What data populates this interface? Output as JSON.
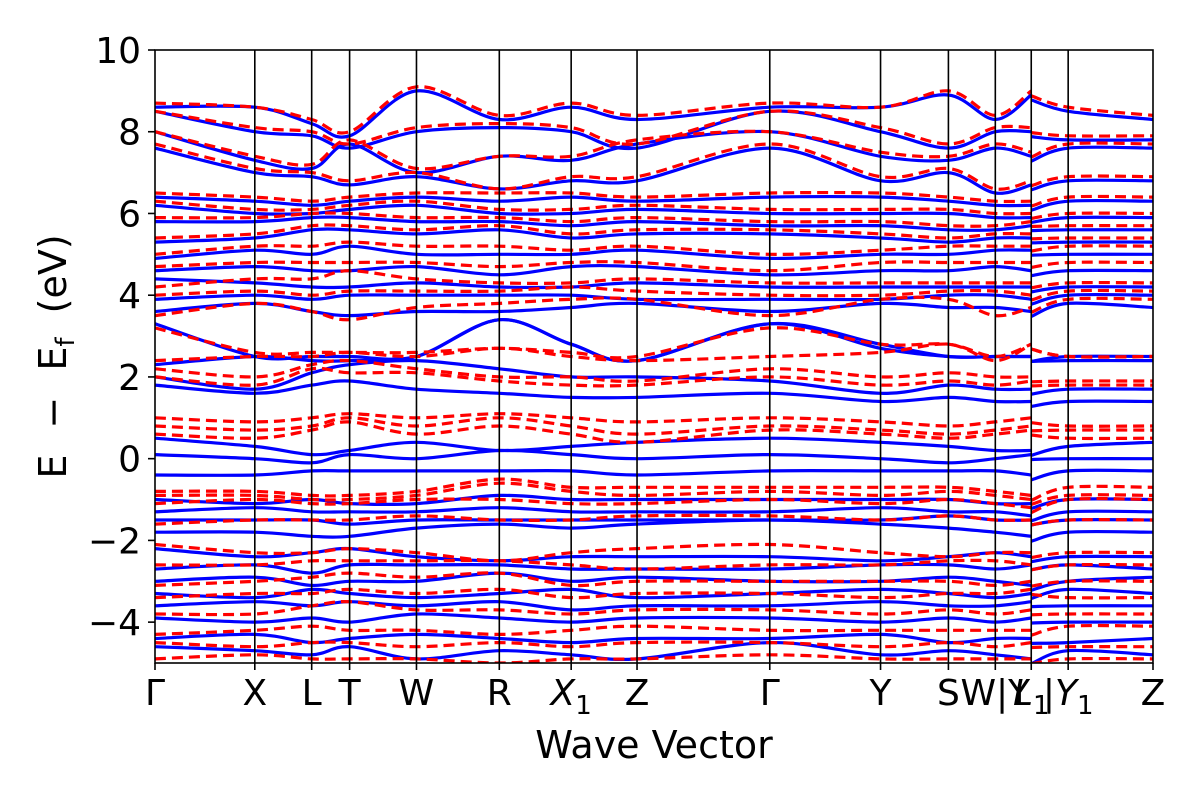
{
  "chart_data": {
    "type": "line",
    "title": "",
    "xlabel": "Wave Vector",
    "ylabel_parts": {
      "E": "E",
      "minus": "−",
      "Ef_main": "E",
      "Ef_sub": "f",
      "unit": "(eV)"
    },
    "ylim": [
      -5,
      10
    ],
    "yticks": [
      {
        "value": -4,
        "label": "−4"
      },
      {
        "value": -2,
        "label": "−2"
      },
      {
        "value": 0,
        "label": "0"
      },
      {
        "value": 2,
        "label": "2"
      },
      {
        "value": 4,
        "label": "4"
      },
      {
        "value": 6,
        "label": "6"
      },
      {
        "value": 8,
        "label": "8"
      },
      {
        "value": 10,
        "label": "10"
      }
    ],
    "kpath_label_note": "high-symmetry k-point labels as printed, left to right",
    "kpoints": [
      {
        "label": "Γ",
        "x": 0.0
      },
      {
        "label": "X",
        "x": 0.1
      },
      {
        "label": "L",
        "x": 0.157
      },
      {
        "label": "T",
        "x": 0.195
      },
      {
        "label": "W",
        "x": 0.262
      },
      {
        "label": "R",
        "x": 0.345
      },
      {
        "label": "X",
        "sub": "1",
        "x": 0.417
      },
      {
        "label": "Z",
        "x": 0.483
      },
      {
        "label": "Γ",
        "x": 0.616
      },
      {
        "label": "Y",
        "x": 0.727
      },
      {
        "label": "S",
        "x": 0.795
      },
      {
        "label": "W|Y",
        "x": 0.842
      },
      {
        "label": "L",
        "sub": "1",
        "x": 0.878
      },
      {
        "label": "|Y",
        "sub": "1",
        "x": 0.915
      },
      {
        "label": "Z",
        "x": 1.0
      }
    ],
    "discontinuity_x": 0.878,
    "legend": "none",
    "grid": false,
    "series_styles": [
      {
        "style": "solid",
        "color": "#0000ff"
      },
      {
        "style": "dashed",
        "color": "#ff0000"
      }
    ],
    "bands_solid_blue": [
      [
        -4.6,
        -4.7,
        -4.8,
        -4.6,
        -4.9,
        -4.7,
        -4.8,
        -4.9,
        -4.5,
        -4.8,
        -4.7,
        -4.8,
        -4.9,
        -4.7,
        -4.8
      ],
      [
        -4.4,
        -4.3,
        -4.5,
        -4.4,
        -4.3,
        -4.4,
        -4.5,
        -4.4,
        -4.4,
        -4.3,
        -4.5,
        -4.4,
        -4.4,
        -4.5,
        -4.4
      ],
      [
        -3.9,
        -4.0,
        -3.9,
        -4.0,
        -3.8,
        -3.9,
        -4.0,
        -3.9,
        -3.9,
        -4.0,
        -3.9,
        -4.0,
        -3.9,
        -4.0,
        -4.0
      ],
      [
        -3.6,
        -3.5,
        -3.6,
        -3.5,
        -3.6,
        -3.5,
        -3.7,
        -3.6,
        -3.6,
        -3.5,
        -3.6,
        -3.6,
        -3.5,
        -3.6,
        -3.6
      ],
      [
        -3.3,
        -3.4,
        -3.2,
        -3.3,
        -3.4,
        -3.3,
        -3.2,
        -3.4,
        -3.3,
        -3.2,
        -3.3,
        -3.4,
        -3.3,
        -3.2,
        -3.3
      ],
      [
        -3.0,
        -2.9,
        -3.1,
        -3.0,
        -3.0,
        -2.8,
        -3.0,
        -2.9,
        -3.0,
        -3.0,
        -2.9,
        -3.0,
        -3.1,
        -3.0,
        -2.9
      ],
      [
        -2.7,
        -2.6,
        -2.8,
        -2.6,
        -2.6,
        -2.6,
        -2.7,
        -2.7,
        -2.7,
        -2.6,
        -2.6,
        -2.7,
        -2.6,
        -2.6,
        -2.7
      ],
      [
        -2.2,
        -2.4,
        -2.3,
        -2.2,
        -2.4,
        -2.5,
        -2.4,
        -2.4,
        -2.4,
        -2.5,
        -2.4,
        -2.3,
        -2.4,
        -2.4,
        -2.4
      ],
      [
        -1.8,
        -1.8,
        -1.9,
        -1.9,
        -1.7,
        -1.6,
        -1.7,
        -1.6,
        -1.5,
        -1.6,
        -1.7,
        -1.8,
        -1.9,
        -1.8,
        -1.8
      ],
      [
        -1.5,
        -1.5,
        -1.5,
        -1.6,
        -1.5,
        -1.5,
        -1.5,
        -1.5,
        -1.5,
        -1.5,
        -1.4,
        -1.5,
        -1.5,
        -1.5,
        -1.5
      ],
      [
        -1.3,
        -1.2,
        -1.3,
        -1.3,
        -1.3,
        -1.2,
        -1.3,
        -1.3,
        -1.3,
        -1.2,
        -1.3,
        -1.3,
        -1.4,
        -1.3,
        -1.3
      ],
      [
        -1.0,
        -1.1,
        -1.0,
        -1.1,
        -1.1,
        -0.9,
        -1.0,
        -1.0,
        -1.0,
        -1.0,
        -1.0,
        -1.1,
        -1.1,
        -1.0,
        -1.0
      ],
      [
        -0.4,
        -0.4,
        -0.3,
        -0.3,
        -0.3,
        -0.3,
        -0.3,
        -0.4,
        -0.3,
        -0.3,
        -0.3,
        -0.3,
        -0.4,
        -0.3,
        -0.3
      ],
      [
        0.1,
        0.0,
        -0.1,
        0.1,
        0.0,
        0.2,
        0.1,
        0.0,
        0.1,
        0.0,
        -0.1,
        0.0,
        0.1,
        0.0,
        0.0
      ],
      [
        0.5,
        0.3,
        0.1,
        0.2,
        0.4,
        0.2,
        0.3,
        0.4,
        0.5,
        0.4,
        0.3,
        0.2,
        0.2,
        0.3,
        0.4
      ],
      [
        1.8,
        1.6,
        1.8,
        1.9,
        1.7,
        1.6,
        1.5,
        1.5,
        1.6,
        1.4,
        1.5,
        1.4,
        1.4,
        1.4,
        1.4
      ],
      [
        2.0,
        1.7,
        2.1,
        2.3,
        2.4,
        2.2,
        2.0,
        2.0,
        1.9,
        1.6,
        1.8,
        1.7,
        1.7,
        1.7,
        1.7
      ],
      [
        2.3,
        2.5,
        2.4,
        2.4,
        2.5,
        3.4,
        2.8,
        2.4,
        3.3,
        2.7,
        2.5,
        2.5,
        2.5,
        2.4,
        2.4
      ],
      [
        3.3,
        2.5,
        2.5,
        2.5,
        2.5,
        3.4,
        2.8,
        2.4,
        3.3,
        2.8,
        2.5,
        2.5,
        2.5,
        2.5,
        2.5
      ],
      [
        3.6,
        3.8,
        3.6,
        3.5,
        3.6,
        3.6,
        3.7,
        3.8,
        3.6,
        3.8,
        3.7,
        3.7,
        3.6,
        3.8,
        3.7
      ],
      [
        3.9,
        4.0,
        3.9,
        4.0,
        4.0,
        4.0,
        4.0,
        3.9,
        3.9,
        3.9,
        4.0,
        4.0,
        3.9,
        4.0,
        4.0
      ],
      [
        4.4,
        4.3,
        4.2,
        4.2,
        4.3,
        4.2,
        4.2,
        4.3,
        4.2,
        4.2,
        4.2,
        4.2,
        4.2,
        4.2,
        4.2
      ],
      [
        4.6,
        4.7,
        4.6,
        4.6,
        4.7,
        4.5,
        4.7,
        4.7,
        4.5,
        4.6,
        4.6,
        4.7,
        4.6,
        4.6,
        4.6
      ],
      [
        4.9,
        5.1,
        5.0,
        5.2,
        5.0,
        5.0,
        5.0,
        5.1,
        4.9,
        5.0,
        5.0,
        5.1,
        5.1,
        5.0,
        5.0
      ],
      [
        5.3,
        5.4,
        5.6,
        5.6,
        5.5,
        5.6,
        5.4,
        5.5,
        5.5,
        5.4,
        5.3,
        5.4,
        5.4,
        5.3,
        5.3
      ],
      [
        5.8,
        5.8,
        5.9,
        5.9,
        5.8,
        5.8,
        5.7,
        5.8,
        5.7,
        5.7,
        5.6,
        5.6,
        5.7,
        5.6,
        5.6
      ],
      [
        6.2,
        6.0,
        6.0,
        6.1,
        6.2,
        6.0,
        6.0,
        6.1,
        6.0,
        6.0,
        6.0,
        5.9,
        5.9,
        5.9,
        5.9
      ],
      [
        6.4,
        6.3,
        6.2,
        6.3,
        6.4,
        6.3,
        6.4,
        6.3,
        6.4,
        6.4,
        6.3,
        6.2,
        6.2,
        6.3,
        6.3
      ],
      [
        7.6,
        7.0,
        6.9,
        6.7,
        6.9,
        6.6,
        6.8,
        6.8,
        7.6,
        6.8,
        7.0,
        6.5,
        6.7,
        6.8,
        6.8
      ],
      [
        8.0,
        7.3,
        7.1,
        7.7,
        7.0,
        7.4,
        7.3,
        7.7,
        8.0,
        7.4,
        7.3,
        7.6,
        7.4,
        7.6,
        7.6
      ],
      [
        8.5,
        8.0,
        7.9,
        7.6,
        8.0,
        8.1,
        8.0,
        7.6,
        8.5,
        8.0,
        7.6,
        8.0,
        8.0,
        7.8,
        7.8
      ],
      [
        8.6,
        8.6,
        8.2,
        7.9,
        9.0,
        8.3,
        8.6,
        8.3,
        8.6,
        8.6,
        8.9,
        8.3,
        8.9,
        8.5,
        8.3
      ]
    ],
    "bands_dashed_red": [
      [
        -4.9,
        -4.8,
        -4.9,
        -4.9,
        -4.9,
        -5.0,
        -4.9,
        -4.9,
        -4.8,
        -4.9,
        -4.9,
        -4.9,
        -4.9,
        -4.9,
        -4.9
      ],
      [
        -4.5,
        -4.6,
        -4.5,
        -4.5,
        -4.6,
        -4.5,
        -4.6,
        -4.5,
        -4.5,
        -4.6,
        -4.5,
        -4.6,
        -4.5,
        -4.6,
        -4.6
      ],
      [
        -4.3,
        -4.2,
        -4.1,
        -4.2,
        -4.2,
        -4.3,
        -4.2,
        -4.1,
        -4.2,
        -4.2,
        -4.2,
        -4.2,
        -4.2,
        -4.1,
        -4.1
      ],
      [
        -3.8,
        -3.8,
        -3.6,
        -3.5,
        -3.7,
        -3.7,
        -3.8,
        -3.7,
        -3.7,
        -3.8,
        -3.7,
        -3.8,
        -3.7,
        -3.8,
        -3.8
      ],
      [
        -3.4,
        -3.3,
        -3.3,
        -3.2,
        -3.3,
        -3.2,
        -3.4,
        -3.3,
        -3.3,
        -3.4,
        -3.3,
        -3.3,
        -3.2,
        -3.4,
        -3.4
      ],
      [
        -3.1,
        -3.0,
        -2.9,
        -2.8,
        -2.9,
        -2.8,
        -3.1,
        -3.0,
        -3.0,
        -3.0,
        -3.0,
        -3.1,
        -3.0,
        -3.0,
        -3.0
      ],
      [
        -2.6,
        -2.6,
        -2.5,
        -2.5,
        -2.5,
        -2.5,
        -2.6,
        -2.7,
        -2.6,
        -2.6,
        -2.5,
        -2.5,
        -2.6,
        -2.6,
        -2.6
      ],
      [
        -2.1,
        -2.3,
        -2.3,
        -2.2,
        -2.3,
        -2.5,
        -2.3,
        -2.2,
        -2.1,
        -2.3,
        -2.4,
        -2.3,
        -2.3,
        -2.3,
        -2.3
      ],
      [
        -1.6,
        -1.5,
        -1.5,
        -1.5,
        -1.4,
        -1.5,
        -1.5,
        -1.4,
        -1.4,
        -1.5,
        -1.4,
        -1.5,
        -1.5,
        -1.5,
        -1.5
      ],
      [
        -1.1,
        -1.0,
        -1.1,
        -1.1,
        -1.0,
        -1.0,
        -1.1,
        -1.1,
        -1.0,
        -1.1,
        -1.0,
        -1.1,
        -1.2,
        -1.0,
        -1.0
      ],
      [
        -0.9,
        -0.9,
        -1.0,
        -1.0,
        -0.9,
        -0.6,
        -0.8,
        -0.9,
        -0.8,
        -0.9,
        -0.8,
        -0.9,
        -1.0,
        -0.9,
        -0.9
      ],
      [
        -0.8,
        -0.8,
        -0.9,
        -0.9,
        -0.8,
        -0.5,
        -0.7,
        -0.7,
        -0.7,
        -0.7,
        -0.7,
        -0.8,
        -0.9,
        -0.7,
        -0.7
      ],
      [
        0.6,
        0.5,
        0.7,
        0.9,
        0.6,
        0.8,
        0.6,
        0.4,
        0.7,
        0.6,
        0.5,
        0.6,
        0.7,
        0.5,
        0.5
      ],
      [
        0.8,
        0.7,
        0.8,
        1.0,
        0.8,
        1.0,
        0.8,
        0.6,
        0.8,
        0.7,
        0.6,
        0.7,
        0.8,
        0.7,
        0.7
      ],
      [
        1.0,
        0.9,
        1.0,
        1.1,
        1.0,
        1.1,
        1.0,
        0.9,
        1.0,
        0.9,
        0.8,
        0.9,
        1.0,
        0.8,
        0.8
      ],
      [
        2.0,
        1.8,
        2.2,
        2.1,
        2.1,
        1.9,
        1.8,
        1.8,
        2.0,
        1.8,
        1.9,
        1.8,
        1.9,
        1.8,
        1.8
      ],
      [
        2.2,
        2.0,
        2.3,
        2.4,
        2.2,
        2.0,
        2.0,
        1.9,
        2.2,
        2.0,
        2.1,
        2.0,
        2.0,
        1.9,
        1.9
      ],
      [
        2.4,
        2.5,
        2.5,
        2.6,
        2.5,
        2.7,
        2.5,
        2.4,
        2.5,
        2.6,
        2.8,
        2.4,
        2.8,
        2.5,
        2.5
      ],
      [
        3.2,
        2.6,
        2.6,
        2.6,
        2.6,
        2.7,
        2.6,
        2.5,
        3.2,
        2.8,
        2.8,
        2.5,
        2.8,
        2.5,
        2.5
      ],
      [
        3.5,
        3.8,
        3.6,
        3.4,
        3.7,
        3.8,
        3.9,
        3.9,
        3.5,
        3.9,
        3.9,
        3.5,
        3.7,
        3.9,
        3.9
      ],
      [
        4.0,
        4.1,
        4.0,
        4.1,
        4.1,
        4.1,
        4.2,
        4.1,
        4.0,
        4.0,
        4.1,
        4.1,
        4.0,
        4.1,
        4.1
      ],
      [
        4.2,
        4.4,
        4.4,
        4.6,
        4.4,
        4.3,
        4.3,
        4.4,
        4.3,
        4.3,
        4.3,
        4.3,
        4.3,
        4.3,
        4.3
      ],
      [
        4.7,
        4.8,
        4.8,
        4.8,
        4.8,
        4.7,
        4.8,
        4.8,
        4.6,
        4.8,
        4.8,
        4.8,
        4.8,
        4.8,
        4.8
      ],
      [
        5.0,
        5.2,
        5.2,
        5.3,
        5.2,
        5.2,
        5.1,
        5.2,
        5.0,
        5.1,
        5.2,
        5.2,
        5.2,
        5.2,
        5.2
      ],
      [
        5.4,
        5.5,
        5.7,
        5.7,
        5.6,
        5.7,
        5.5,
        5.6,
        5.6,
        5.5,
        5.4,
        5.5,
        5.5,
        5.4,
        5.4
      ],
      [
        5.9,
        5.9,
        6.0,
        6.0,
        5.9,
        5.9,
        5.8,
        5.9,
        5.8,
        5.8,
        5.7,
        5.7,
        5.8,
        5.7,
        5.7
      ],
      [
        6.3,
        6.1,
        6.1,
        6.2,
        6.3,
        6.1,
        6.1,
        6.2,
        6.1,
        6.1,
        6.1,
        6.0,
        6.0,
        6.0,
        6.0
      ],
      [
        6.5,
        6.4,
        6.3,
        6.4,
        6.5,
        6.5,
        6.5,
        6.4,
        6.5,
        6.5,
        6.4,
        6.3,
        6.3,
        6.4,
        6.4
      ],
      [
        7.7,
        7.1,
        7.0,
        6.8,
        7.0,
        6.6,
        6.9,
        6.9,
        7.7,
        6.9,
        7.1,
        6.6,
        6.8,
        6.9,
        6.9
      ],
      [
        8.0,
        7.4,
        7.2,
        7.8,
        7.1,
        7.4,
        7.4,
        7.8,
        8.0,
        7.5,
        7.4,
        7.7,
        7.5,
        7.7,
        7.7
      ],
      [
        8.5,
        8.1,
        8.0,
        7.7,
        8.1,
        8.2,
        8.1,
        7.7,
        8.5,
        8.1,
        7.7,
        8.1,
        8.1,
        7.9,
        7.9
      ],
      [
        8.7,
        8.6,
        8.3,
        8.0,
        9.1,
        8.4,
        8.7,
        8.4,
        8.7,
        8.6,
        9.0,
        8.4,
        9.0,
        8.6,
        8.4
      ]
    ]
  }
}
